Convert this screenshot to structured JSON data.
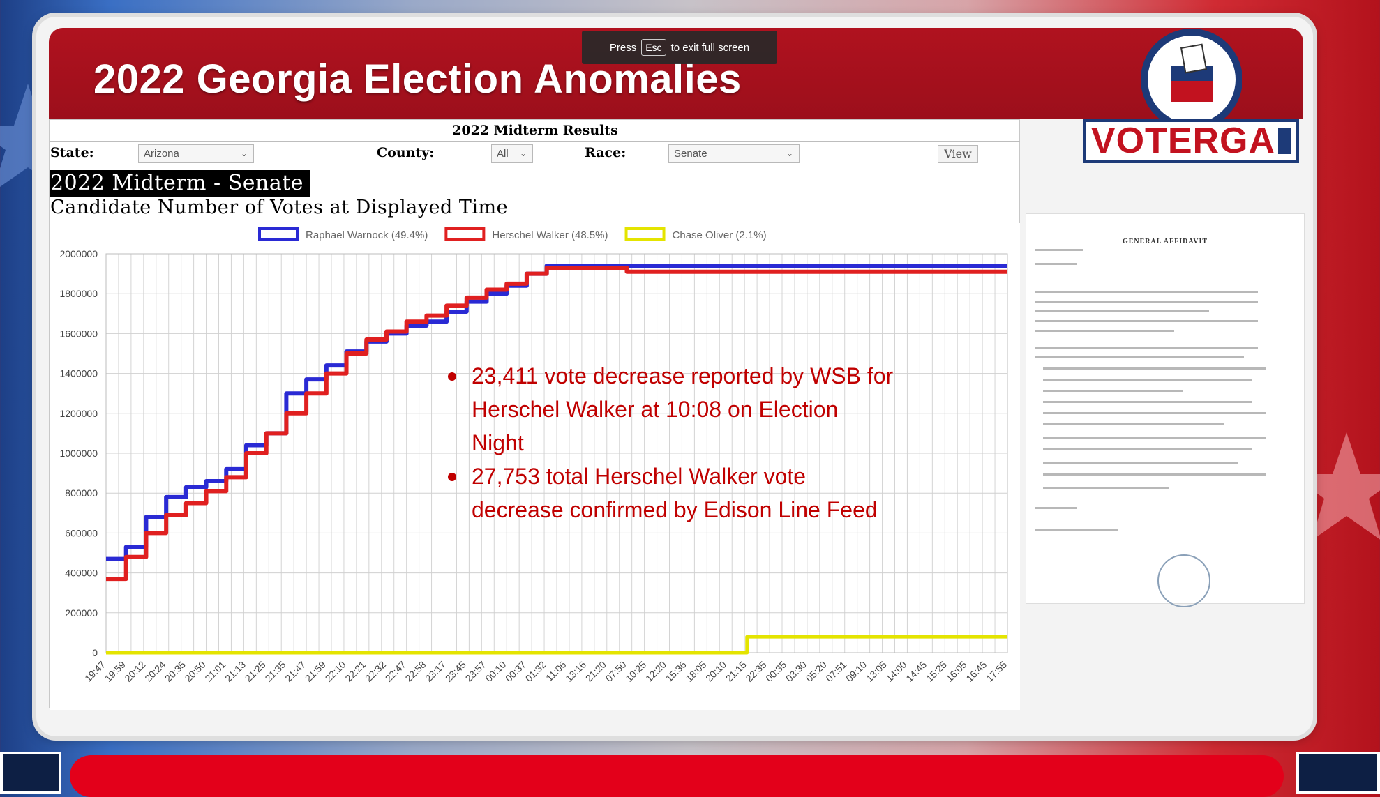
{
  "page": {
    "title": "2022 Georgia Election Anomalies",
    "toast": {
      "pre": "Press",
      "key": "Esc",
      "post": "to exit full screen"
    },
    "logo_text": "VOTERGA"
  },
  "panel": {
    "results_title": "2022 Midterm Results",
    "state_label": "State:",
    "state_value": "Arizona",
    "county_label": "County:",
    "county_value": "All",
    "race_label": "Race:",
    "race_value": "Senate",
    "view_button": "View"
  },
  "chart_data": {
    "type": "line",
    "title": "2022 Midterm - Senate",
    "subtitle": "Candidate Number of Votes at Displayed Time",
    "ylim": [
      0,
      2000000
    ],
    "yticks": [
      0,
      200000,
      400000,
      600000,
      800000,
      1000000,
      1200000,
      1400000,
      1600000,
      1800000,
      2000000
    ],
    "grid": true,
    "legend_position": "top-center",
    "x_tick_labels": [
      "19:47",
      "19:59",
      "20:12",
      "20:24",
      "20:35",
      "20:50",
      "21:01",
      "21:13",
      "21:25",
      "21:35",
      "21:47",
      "21:59",
      "22:10",
      "22:21",
      "22:32",
      "22:47",
      "22:58",
      "23:17",
      "23:45",
      "23:57",
      "00:10",
      "00:37",
      "01:32",
      "11:06",
      "13:16",
      "21:20",
      "07:50",
      "10:25",
      "12:20",
      "15:36",
      "18:05",
      "20:10",
      "21:15",
      "22:35",
      "00:35",
      "03:30",
      "05:20",
      "07:51",
      "09:10",
      "13:05",
      "14:00",
      "14:45",
      "15:25",
      "16:05",
      "16:45",
      "17:55"
    ],
    "series": [
      {
        "name": "Raphael Warnock (49.4%)",
        "color": "#2a2ad4",
        "values": [
          470000,
          530000,
          680000,
          780000,
          830000,
          860000,
          920000,
          1040000,
          1100000,
          1300000,
          1370000,
          1440000,
          1510000,
          1560000,
          1600000,
          1640000,
          1660000,
          1710000,
          1760000,
          1800000,
          1840000,
          1900000,
          1940000,
          1940000,
          1940000,
          1940000,
          1940000,
          1940000,
          1940000,
          1940000,
          1940000,
          1940000,
          1940000,
          1940000,
          1940000,
          1940000,
          1940000,
          1940000,
          1940000,
          1940000,
          1940000,
          1940000,
          1940000,
          1940000,
          1940000,
          1940000
        ]
      },
      {
        "name": "Herschel Walker (48.5%)",
        "color": "#e02020",
        "values": [
          370000,
          480000,
          600000,
          690000,
          750000,
          810000,
          880000,
          1000000,
          1100000,
          1200000,
          1300000,
          1400000,
          1500000,
          1570000,
          1610000,
          1660000,
          1690000,
          1740000,
          1780000,
          1820000,
          1850000,
          1900000,
          1930000,
          1930000,
          1930000,
          1930000,
          1910000,
          1910000,
          1910000,
          1910000,
          1910000,
          1910000,
          1910000,
          1910000,
          1910000,
          1910000,
          1910000,
          1910000,
          1910000,
          1910000,
          1910000,
          1910000,
          1910000,
          1910000,
          1910000,
          1910000
        ]
      },
      {
        "name": "Chase Oliver (2.1%)",
        "color": "#e4e400",
        "values": [
          0,
          0,
          0,
          0,
          0,
          0,
          0,
          0,
          0,
          0,
          0,
          0,
          0,
          0,
          0,
          0,
          0,
          0,
          0,
          0,
          0,
          0,
          0,
          0,
          0,
          0,
          0,
          0,
          0,
          0,
          0,
          0,
          80000,
          80000,
          80000,
          80000,
          80000,
          80000,
          80000,
          80000,
          80000,
          80000,
          80000,
          80000,
          80000,
          80000
        ]
      }
    ],
    "annotations": [
      "23,411 vote decrease reported by WSB for Herschel Walker at 10:08 on Election Night",
      "27,753 total  Herschel Walker vote decrease confirmed by Edison Line Feed"
    ]
  },
  "affidavit": {
    "title": "GENERAL AFFIDAVIT"
  },
  "colors": {
    "header_red": "#b0121f",
    "annotation_red": "#c00000",
    "logo_blue": "#1d3a78"
  }
}
